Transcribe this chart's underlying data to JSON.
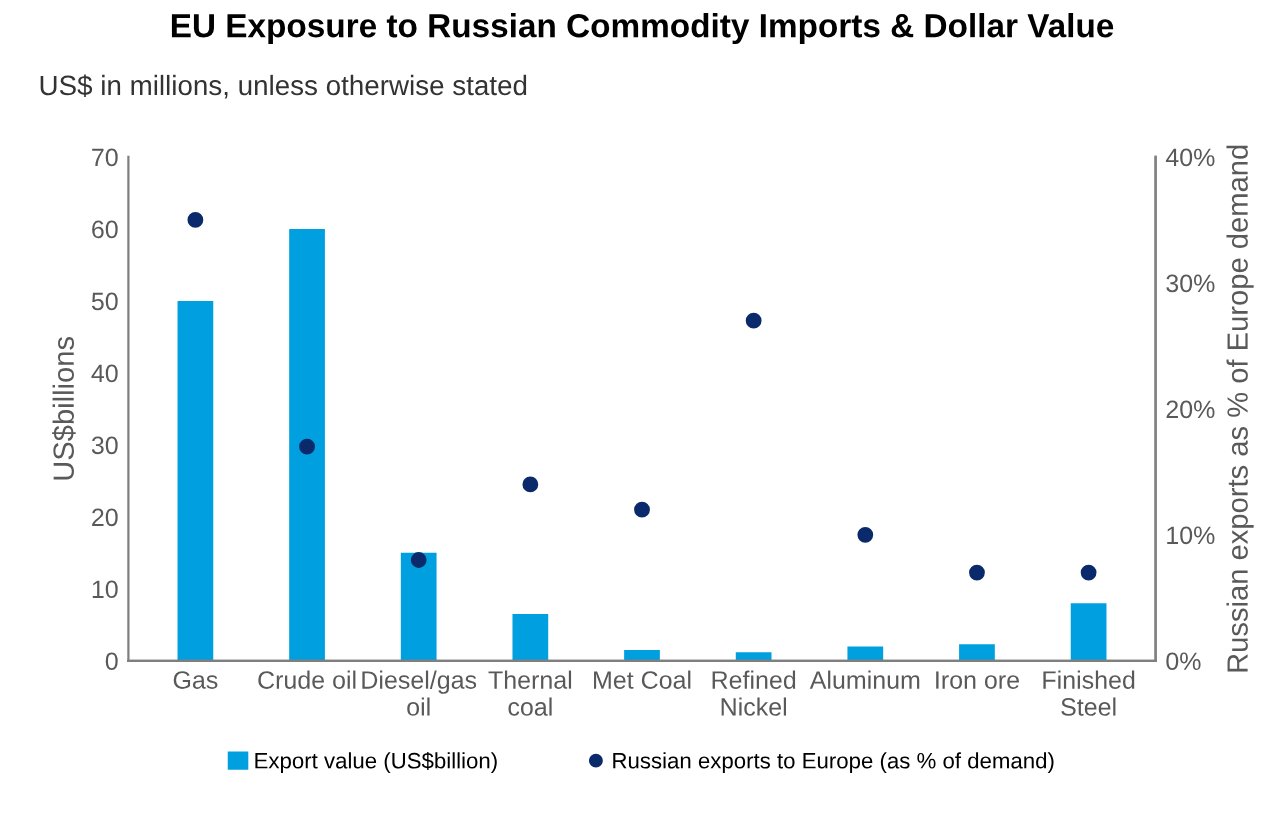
{
  "chart_data": {
    "type": "bar",
    "title": "EU Exposure to Russian Commodity Imports & Dollar Value",
    "subtitle": "US$ in millions, unless otherwise stated",
    "categories": [
      "Gas",
      "Crude oil",
      "Diesel/gas\noil",
      "Thernal\ncoal",
      "Met Coal",
      "Refined\nNickel",
      "Aluminum",
      "Iron ore",
      "Finished\nSteel"
    ],
    "series": [
      {
        "name": "Export value (US$billion)",
        "color": "#009fdf",
        "values": [
          50,
          60,
          15,
          6.5,
          1.5,
          1.2,
          2,
          2.3,
          8
        ]
      },
      {
        "name": "Russian exports to Europe (as % of demand)",
        "type": "scatter",
        "axis": "y2",
        "color": "#0a2a6b",
        "marker": "circle",
        "values": [
          35,
          17,
          8,
          14,
          12,
          27,
          10,
          7,
          7
        ]
      }
    ],
    "ylabel": "US$billions",
    "y2label": "Russian exports as % of Europe demand",
    "ylim": [
      0,
      70
    ],
    "yticks": [
      0,
      10,
      20,
      30,
      40,
      50,
      60,
      70
    ],
    "y2lim": [
      0,
      40
    ],
    "y2ticks": [
      {
        "value": 0,
        "label": "0%"
      },
      {
        "value": 10,
        "label": "10%"
      },
      {
        "value": 20,
        "label": "20%"
      },
      {
        "value": 30,
        "label": "30%"
      },
      {
        "value": 40,
        "label": "40%"
      }
    ],
    "grid": false,
    "legend": "bottom"
  }
}
